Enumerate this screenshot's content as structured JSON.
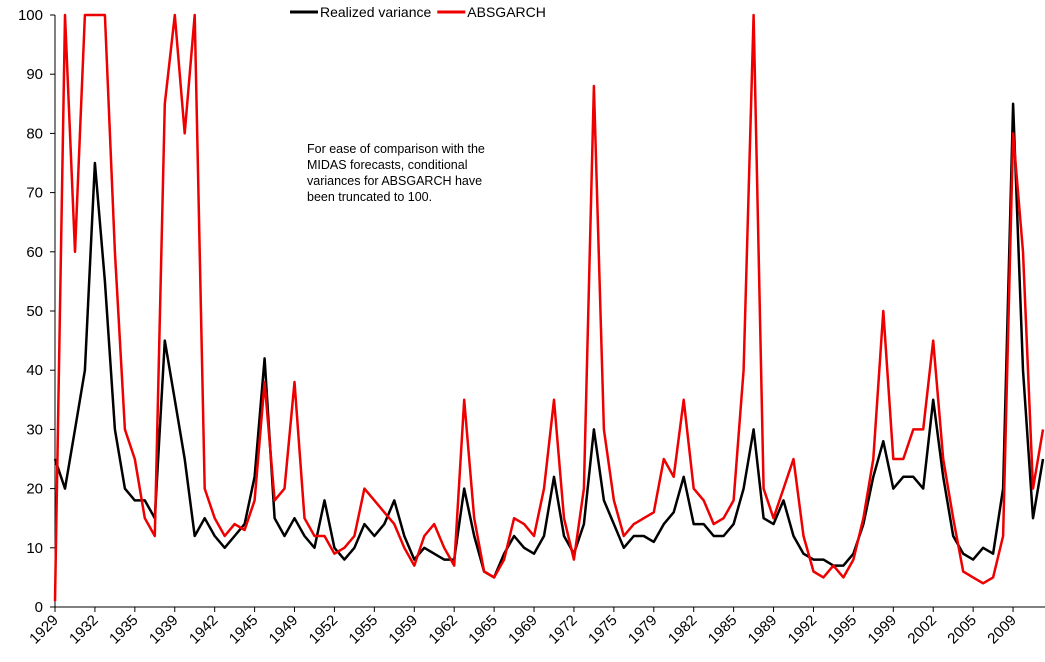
{
  "chart_data": {
    "type": "line",
    "annotation": [
      "For ease of comparison with the",
      "MIDAS forecasts, conditional",
      "variances for ABSGARCH have",
      "been truncated to 100."
    ],
    "categories": [
      "1929",
      null,
      null,
      null,
      "1932",
      null,
      null,
      null,
      "1935",
      null,
      null,
      null,
      "1939",
      null,
      null,
      null,
      "1942",
      null,
      null,
      null,
      "1945",
      null,
      null,
      null,
      "1949",
      null,
      null,
      null,
      "1952",
      null,
      null,
      null,
      "1955",
      null,
      null,
      null,
      "1959",
      null,
      null,
      null,
      "1962",
      null,
      null,
      null,
      "1965",
      null,
      null,
      null,
      "1969",
      null,
      null,
      null,
      "1972",
      null,
      null,
      null,
      "1975",
      null,
      null,
      null,
      "1979",
      null,
      null,
      null,
      "1982",
      null,
      null,
      null,
      "1985",
      null,
      null,
      null,
      "1989",
      null,
      null,
      null,
      "1992",
      null,
      null,
      null,
      "1995",
      null,
      null,
      null,
      "1999",
      null,
      null,
      null,
      "2002",
      null,
      null,
      null,
      "2005",
      null,
      null,
      null,
      "2009",
      null,
      null,
      null
    ],
    "series": [
      {
        "name": "Realized variance",
        "color": "#000000",
        "values": [
          25,
          20,
          30,
          40,
          75,
          55,
          30,
          20,
          18,
          18,
          15,
          45,
          35,
          25,
          12,
          15,
          12,
          10,
          12,
          14,
          22,
          42,
          15,
          12,
          15,
          12,
          10,
          18,
          10,
          8,
          10,
          14,
          12,
          14,
          18,
          12,
          8,
          10,
          9,
          8,
          8,
          20,
          12,
          6,
          5,
          9,
          12,
          10,
          9,
          12,
          22,
          12,
          9,
          14,
          30,
          18,
          14,
          10,
          12,
          12,
          11,
          14,
          16,
          22,
          14,
          14,
          12,
          12,
          14,
          20,
          30,
          15,
          14,
          18,
          12,
          9,
          8,
          8,
          7,
          7,
          9,
          14,
          22,
          28,
          20,
          22,
          22,
          20,
          35,
          22,
          12,
          9,
          8,
          10,
          9,
          20,
          85,
          40,
          15,
          25
        ]
      },
      {
        "name": "ABSGARCH",
        "color": "#ee0000",
        "values": [
          1,
          100,
          60,
          100,
          100,
          100,
          60,
          30,
          25,
          15,
          12,
          85,
          100,
          80,
          100,
          20,
          15,
          12,
          14,
          13,
          18,
          38,
          18,
          20,
          38,
          15,
          12,
          12,
          9,
          10,
          12,
          20,
          18,
          16,
          14,
          10,
          7,
          12,
          14,
          10,
          7,
          35,
          15,
          6,
          5,
          8,
          15,
          14,
          12,
          20,
          35,
          15,
          8,
          20,
          88,
          30,
          18,
          12,
          14,
          15,
          16,
          25,
          22,
          35,
          20,
          18,
          14,
          15,
          18,
          40,
          100,
          20,
          15,
          20,
          25,
          12,
          6,
          5,
          7,
          5,
          8,
          15,
          25,
          50,
          25,
          25,
          30,
          30,
          45,
          25,
          15,
          6,
          5,
          4,
          5,
          12,
          80,
          60,
          20,
          30
        ]
      }
    ],
    "ylim": [
      0,
      100
    ],
    "yticks": [
      0,
      10,
      20,
      30,
      40,
      50,
      60,
      70,
      80,
      90,
      100
    ],
    "grid": false
  }
}
